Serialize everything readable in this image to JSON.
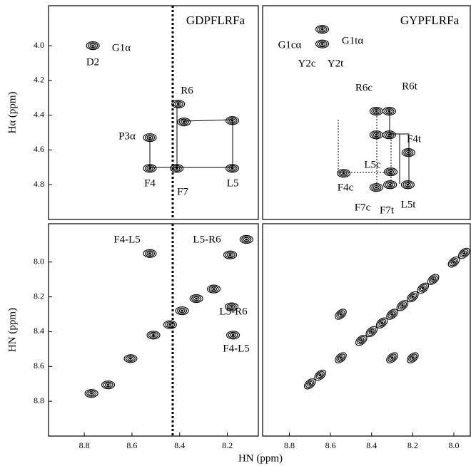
{
  "chart_data": [
    {
      "type": "scatter",
      "title": "GDPFLRFa",
      "ylabel": "Hα (ppm)",
      "x": [
        8.764,
        8.525,
        8.525,
        8.406,
        8.382,
        8.412,
        8.179,
        8.179
      ],
      "y": [
        4.0,
        4.529,
        4.706,
        4.336,
        4.439,
        4.706,
        4.706,
        4.431
      ],
      "xlim": [
        8.95,
        8.07
      ],
      "ylim": [
        3.77,
        5.0
      ],
      "yticks": [
        {
          "value": 4,
          "label": "4.0"
        },
        4.2,
        4.4,
        4.6,
        4.8
      ],
      "annotations": [
        "G1α",
        "D2",
        "R6",
        "P3α",
        "F4",
        "F7",
        "L5"
      ]
    },
    {
      "type": "scatter",
      "title": "GYPFLRFa",
      "x": [
        8.64,
        8.64,
        8.377,
        8.314,
        8.377,
        8.314,
        8.307,
        8.221,
        8.536,
        8.377,
        8.224,
        8.31
      ],
      "y": [
        3.906,
        3.99,
        4.377,
        4.377,
        4.513,
        4.513,
        4.726,
        4.615,
        4.734,
        4.816,
        4.8,
        4.8
      ],
      "xlim": [
        8.93,
        7.92
      ],
      "ylim": [
        3.77,
        5.0
      ],
      "annotations": [
        "G1cα",
        "G1tα",
        "Y2c",
        "Y2t",
        "R6c",
        "R6t",
        "F4t",
        "L5c",
        "F4c",
        "F7c",
        "F7t",
        "L5t"
      ]
    },
    {
      "type": "scatter",
      "xlabel": "HN (ppm)",
      "ylabel": "HN (ppm)",
      "x": [
        8.525,
        8.188,
        8.77,
        8.7,
        8.606,
        8.51,
        8.44,
        8.39,
        8.33,
        8.257,
        8.182,
        8.176,
        8.12
      ],
      "y": [
        7.951,
        7.959,
        8.755,
        8.706,
        8.555,
        8.42,
        8.36,
        8.28,
        8.21,
        8.155,
        8.257,
        8.42,
        7.87
      ],
      "xlim": [
        8.95,
        8.07
      ],
      "ylim": [
        7.78,
        9.0
      ],
      "xticks": [
        8.8,
        8.6,
        8.4,
        8.2
      ],
      "yticks": [
        {
          "value": 8,
          "label": "8.0"
        },
        8.2,
        8.4,
        8.6,
        8.8
      ],
      "annotations": [
        "F4-L5",
        "L5-R6",
        "L5-R6",
        "F4-L5"
      ]
    },
    {
      "type": "scatter",
      "x": [
        8.7,
        8.65,
        8.55,
        8.45,
        8.4,
        8.35,
        8.3,
        8.25,
        8.2,
        8.15,
        8.1,
        8.0,
        7.95,
        8.3,
        8.2,
        8.55
      ],
      "y": [
        8.7,
        8.65,
        8.55,
        8.45,
        8.4,
        8.35,
        8.3,
        8.25,
        8.2,
        8.15,
        8.1,
        8.0,
        7.95,
        8.55,
        8.55,
        8.3
      ],
      "xlim": [
        8.93,
        7.92
      ],
      "ylim": [
        7.78,
        9.0
      ],
      "xticks": [
        8.8,
        8.6,
        8.4,
        8.2,
        {
          "value": 8,
          "label": "8.0"
        }
      ]
    }
  ]
}
